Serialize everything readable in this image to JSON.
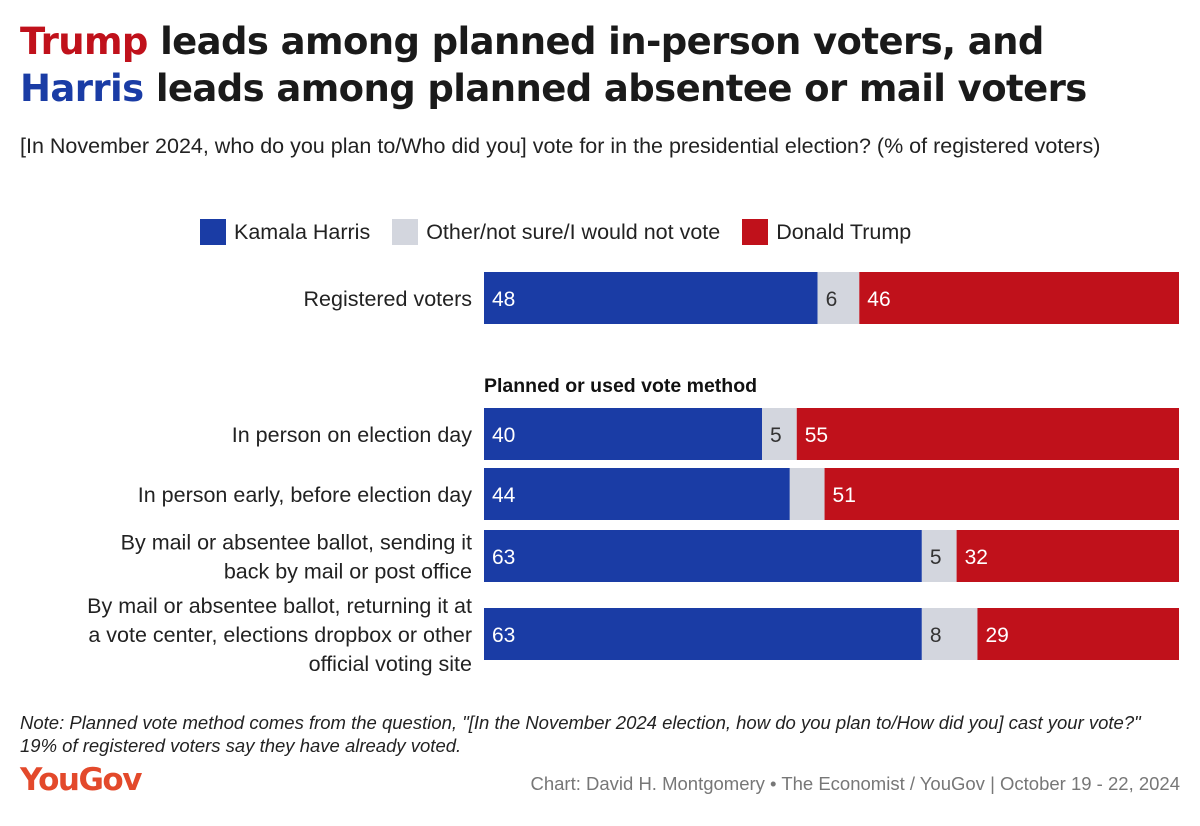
{
  "header": {
    "title_line1_highlight": "Trump",
    "title_line1_rest": " leads among planned in-person voters, and",
    "title_line2_highlight": "Harris",
    "title_line2_rest": " leads among planned absentee or mail voters",
    "subtitle": "[In November 2024, who do you plan to/Who did you] vote for in the presidential election? (% of registered voters)"
  },
  "colors": {
    "harris": "#1a3ca5",
    "other": "#d3d6de",
    "trump": "#c0111b",
    "harris_title": "#1a3ca5",
    "trump_title": "#c0111b"
  },
  "legend": [
    {
      "label": "Kamala Harris",
      "color": "#1a3ca5"
    },
    {
      "label": "Other/not sure/I would not vote",
      "color": "#d3d6de"
    },
    {
      "label": "Donald Trump",
      "color": "#c0111b"
    }
  ],
  "chart_data": {
    "type": "bar",
    "orientation": "horizontal",
    "stacked": true,
    "categories": [
      [
        "Registered voters"
      ],
      [
        "In person on election day"
      ],
      [
        "In person early, before election day"
      ],
      [
        "By mail or absentee ballot, sending it",
        "back by mail or post office"
      ],
      [
        "By mail or absentee ballot, returning it at",
        "a vote center, elections dropbox or other",
        "official voting site"
      ]
    ],
    "group_label": "Planned or used vote method",
    "series": [
      {
        "name": "Kamala Harris",
        "color": "#1a3ca5",
        "values": [
          48,
          40,
          44,
          63,
          63
        ],
        "labels": [
          "48",
          "40",
          "44",
          "63",
          "63"
        ]
      },
      {
        "name": "Other/not sure/I would not vote",
        "color": "#d3d6de",
        "values": [
          6,
          5,
          5,
          5,
          8
        ],
        "labels": [
          "6",
          "5",
          "",
          "5",
          "8"
        ]
      },
      {
        "name": "Donald Trump",
        "color": "#c0111b",
        "values": [
          46,
          55,
          51,
          32,
          29
        ],
        "labels": [
          "46",
          "55",
          "51",
          "32",
          "29"
        ]
      }
    ],
    "xlim": [
      0,
      100
    ],
    "legend_position": "top"
  },
  "footer": {
    "note": "Note: Planned vote method comes from the question, \"[In the November 2024 election, how do you plan to/How did you] cast your vote?\" 19% of registered voters say they have already voted.",
    "logo": "YouGov",
    "credit": "Chart: David H. Montgomery • The Economist / YouGov | October 19 - 22, 2024"
  }
}
